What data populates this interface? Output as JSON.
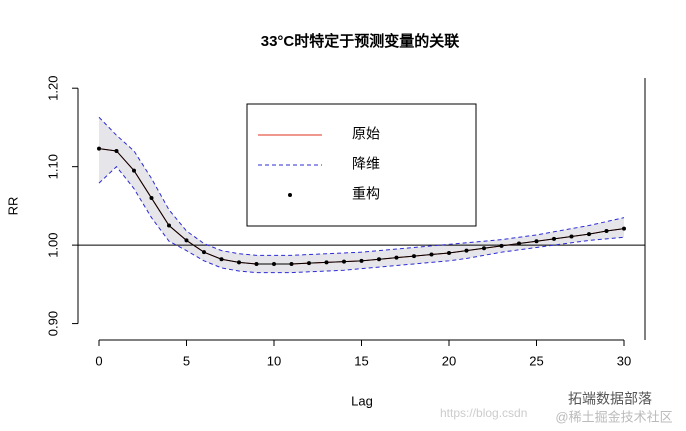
{
  "chart_data": {
    "type": "line",
    "title": "33°C时特定于预测变量的关联",
    "x_label": "Lag",
    "y_label": "RR",
    "x": [
      0,
      1,
      2,
      3,
      4,
      5,
      6,
      7,
      8,
      9,
      10,
      11,
      12,
      13,
      14,
      15,
      16,
      17,
      18,
      19,
      20,
      21,
      22,
      23,
      24,
      25,
      26,
      27,
      28,
      29,
      30
    ],
    "series": [
      {
        "name": "原始",
        "color": "#e0301e",
        "style": "solid",
        "values": [
          1.123,
          1.12,
          1.095,
          1.06,
          1.025,
          1.006,
          0.991,
          0.982,
          0.978,
          0.976,
          0.976,
          0.976,
          0.977,
          0.978,
          0.979,
          0.98,
          0.982,
          0.984,
          0.986,
          0.988,
          0.99,
          0.993,
          0.996,
          0.999,
          1.002,
          1.005,
          1.008,
          1.011,
          1.014,
          1.018,
          1.021
        ]
      },
      {
        "name": "降维",
        "color": "#2b2bd6",
        "style": "dashed",
        "upper": [
          1.163,
          1.14,
          1.12,
          1.085,
          1.045,
          1.018,
          1.002,
          0.993,
          0.989,
          0.987,
          0.987,
          0.987,
          0.988,
          0.989,
          0.99,
          0.991,
          0.993,
          0.995,
          0.997,
          0.999,
          1.001,
          1.003,
          1.005,
          1.007,
          1.01,
          1.013,
          1.017,
          1.021,
          1.025,
          1.03,
          1.035
        ],
        "lower": [
          1.079,
          1.1,
          1.072,
          1.035,
          1.005,
          0.993,
          0.98,
          0.971,
          0.967,
          0.965,
          0.965,
          0.965,
          0.966,
          0.967,
          0.968,
          0.97,
          0.972,
          0.974,
          0.976,
          0.978,
          0.98,
          0.983,
          0.987,
          0.991,
          0.994,
          0.997,
          1.0,
          1.003,
          1.006,
          1.008,
          1.01
        ]
      },
      {
        "name": "重构",
        "color": "#000000",
        "style": "points",
        "values": [
          1.123,
          1.12,
          1.095,
          1.06,
          1.025,
          1.006,
          0.991,
          0.982,
          0.978,
          0.976,
          0.976,
          0.976,
          0.977,
          0.978,
          0.979,
          0.98,
          0.982,
          0.984,
          0.986,
          0.988,
          0.99,
          0.993,
          0.996,
          0.999,
          1.002,
          1.005,
          1.008,
          1.011,
          1.014,
          1.018,
          1.021
        ]
      }
    ],
    "band_color": "#e6e6ea",
    "reference_line": 1,
    "xlim": [
      -1.2,
      31.2
    ],
    "xticks": [
      0,
      5,
      10,
      15,
      20,
      25,
      30
    ],
    "ylim": [
      0.888,
      1.213
    ],
    "yticks": [
      {
        "value": 0.9,
        "label": "0.90"
      },
      {
        "value": 1.0,
        "label": "1.00"
      },
      {
        "value": 1.1,
        "label": "1.10"
      },
      {
        "value": 1.2,
        "label": "1.20"
      }
    ],
    "legend": "top-center",
    "watermarks": [
      "拓端数据部落",
      "https://blog.csdn",
      "@稀土掘金技术社区"
    ]
  }
}
